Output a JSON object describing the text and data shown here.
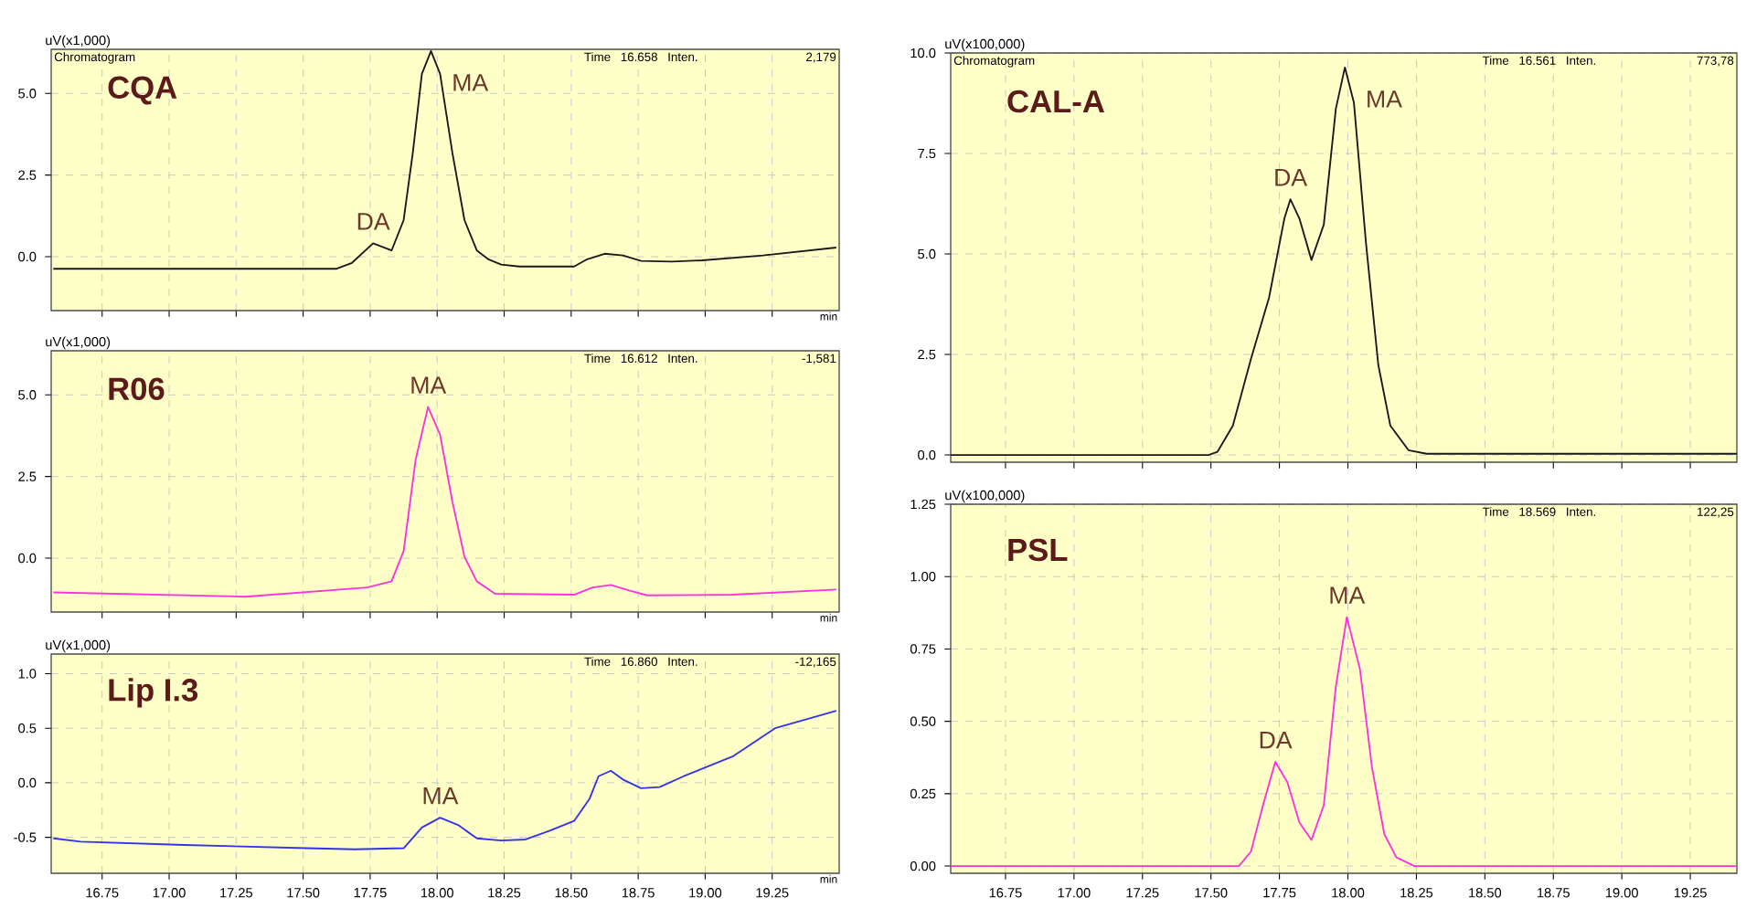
{
  "chart_data": [
    {
      "type": "line",
      "title": "CQA",
      "subtitle": "Chromatogram",
      "ylabel": "uV(x1,000)",
      "xlabel": "min",
      "grid": true,
      "tick_labels": "y",
      "xlim": [
        16.56,
        19.5
      ],
      "ylim": [
        -1.65,
        6.35
      ],
      "xticks": [
        16.75,
        17,
        17.25,
        17.5,
        17.75,
        18,
        18.25,
        18.5,
        18.75,
        19,
        19.25
      ],
      "yticks": [
        {
          "value": 0,
          "label": "0.0"
        },
        {
          "value": 2.5,
          "label": "2.5"
        },
        {
          "value": 5,
          "label": "5.0"
        }
      ],
      "x": [
        16.568,
        17.625,
        17.682,
        17.761,
        17.83,
        17.875,
        17.909,
        17.943,
        17.977,
        18.011,
        18.057,
        18.102,
        18.148,
        18.193,
        18.239,
        18.307,
        18.511,
        18.557,
        18.625,
        18.693,
        18.761,
        18.875,
        18.989,
        19.216,
        19.489
      ],
      "series": [
        {
          "color": "#1a1a1a",
          "values": [
            -0.37,
            -0.37,
            -0.19,
            0.41,
            0.19,
            1.12,
            3.17,
            5.6,
            6.3,
            5.6,
            3.17,
            1.12,
            0.19,
            -0.09,
            -0.24,
            -0.3,
            -0.3,
            -0.09,
            0.09,
            0.04,
            -0.13,
            -0.15,
            -0.11,
            0.04,
            0.28
          ]
        }
      ],
      "annotations": [
        {
          "text": "DA",
          "x": 17.761,
          "y": 0.41
        },
        {
          "text": "MA",
          "x": 17.977,
          "y": 6.3
        },
        "Time",
        "16.658",
        "Inten.",
        "2,179"
      ]
    },
    {
      "type": "line",
      "title": "R06",
      "ylabel": "uV(x1,000)",
      "xlabel": "min",
      "grid": true,
      "tick_labels": "y",
      "xlim": [
        16.56,
        19.5
      ],
      "ylim": [
        -1.65,
        6.35
      ],
      "xticks": [
        16.75,
        17,
        17.25,
        17.5,
        17.75,
        18,
        18.25,
        18.5,
        18.75,
        19,
        19.25
      ],
      "yticks": [
        {
          "value": 0,
          "label": "0.0"
        },
        {
          "value": 2.5,
          "label": "2.5"
        },
        {
          "value": 5,
          "label": "5.0"
        }
      ],
      "x": [
        16.568,
        17.284,
        17.739,
        17.83,
        17.875,
        17.92,
        17.966,
        18.011,
        18.057,
        18.102,
        18.148,
        18.216,
        18.511,
        18.58,
        18.648,
        18.716,
        18.784,
        19.102,
        19.489
      ],
      "series": [
        {
          "color": "#ff33dd",
          "values": [
            -1.05,
            -1.18,
            -0.9,
            -0.71,
            0.22,
            3.03,
            4.63,
            3.78,
            1.72,
            0.04,
            -0.71,
            -1.09,
            -1.12,
            -0.9,
            -0.82,
            -0.99,
            -1.14,
            -1.12,
            -0.96
          ]
        }
      ],
      "annotations": [
        {
          "text": "MA",
          "x": 17.966,
          "y": 4.63
        },
        "Time",
        "16.612",
        "Inten.",
        "-1,581"
      ]
    },
    {
      "type": "line",
      "title": "Lip I.3",
      "ylabel": "uV(x1,000)",
      "xlabel": "min",
      "grid": true,
      "xlim": [
        16.56,
        19.5
      ],
      "ylim": [
        -0.83,
        1.18
      ],
      "xticks": [
        {
          "value": 16.75,
          "label": "16.75"
        },
        {
          "value": 17,
          "label": "17.00"
        },
        {
          "value": 17.25,
          "label": "17.25"
        },
        {
          "value": 17.5,
          "label": "17.50"
        },
        {
          "value": 17.75,
          "label": "17.75"
        },
        {
          "value": 18,
          "label": "18.00"
        },
        {
          "value": 18.25,
          "label": "18.25"
        },
        {
          "value": 18.5,
          "label": "18.50"
        },
        {
          "value": 18.75,
          "label": "18.75"
        },
        {
          "value": 19,
          "label": "19.00"
        },
        {
          "value": 19.25,
          "label": "19.25"
        }
      ],
      "yticks": [
        {
          "value": -0.5,
          "label": "-0.5"
        },
        {
          "value": 0,
          "label": "0.0"
        },
        {
          "value": 0.5,
          "label": "0.5"
        },
        {
          "value": 1,
          "label": "1.0"
        }
      ],
      "x": [
        16.568,
        16.67,
        17.057,
        17.511,
        17.693,
        17.875,
        17.943,
        18.011,
        18.08,
        18.148,
        18.239,
        18.33,
        18.42,
        18.511,
        18.568,
        18.602,
        18.648,
        18.693,
        18.761,
        18.83,
        18.92,
        19.102,
        19.261,
        19.489
      ],
      "series": [
        {
          "color": "#3333ee",
          "values": [
            -0.51,
            -0.54,
            -0.57,
            -0.6,
            -0.61,
            -0.6,
            -0.41,
            -0.32,
            -0.39,
            -0.51,
            -0.53,
            -0.52,
            -0.44,
            -0.35,
            -0.15,
            0.06,
            0.11,
            0.03,
            -0.05,
            -0.04,
            0.06,
            0.24,
            0.5,
            0.66
          ]
        }
      ],
      "annotations": [
        {
          "text": "MA",
          "x": 18.011,
          "y": -0.32
        },
        "Time",
        "16.860",
        "Inten.",
        "-12,165"
      ]
    },
    {
      "type": "line",
      "title": "CAL-A",
      "subtitle": "Chromatogram",
      "ylabel": "uV(x100,000)",
      "grid": true,
      "tick_labels": "y",
      "xlim": [
        16.55,
        19.42
      ],
      "ylim": [
        -0.18,
        10.0
      ],
      "xticks": [
        16.75,
        17,
        17.25,
        17.5,
        17.75,
        18,
        18.25,
        18.5,
        18.75,
        19,
        19.25
      ],
      "yticks": [
        {
          "value": 0,
          "label": "0.0"
        },
        {
          "value": 2.5,
          "label": "2.5"
        },
        {
          "value": 5,
          "label": "5.0"
        },
        {
          "value": 7.5,
          "label": "7.5"
        },
        {
          "value": 10,
          "label": "10.0"
        }
      ],
      "x": [
        16.55,
        17.491,
        17.524,
        17.58,
        17.646,
        17.712,
        17.768,
        17.79,
        17.823,
        17.867,
        17.912,
        17.956,
        17.989,
        18.022,
        18.066,
        18.111,
        18.155,
        18.221,
        18.288,
        19.42
      ],
      "series": [
        {
          "color": "#1a1a1a",
          "values": [
            0,
            0,
            0.08,
            0.73,
            2.39,
            3.91,
            5.88,
            6.36,
            5.88,
            4.85,
            5.73,
            8.61,
            9.64,
            8.76,
            5.27,
            2.24,
            0.73,
            0.12,
            0.03,
            0.03
          ]
        }
      ],
      "annotations": [
        {
          "text": "DA",
          "x": 17.79,
          "y": 6.36
        },
        {
          "text": "MA",
          "x": 17.989,
          "y": 9.64
        },
        "Time",
        "16.561",
        "Inten.",
        "773,78"
      ]
    },
    {
      "type": "line",
      "title": "PSL",
      "ylabel": "uV(x100,000)",
      "grid": true,
      "xlim": [
        16.55,
        19.42
      ],
      "ylim": [
        -0.025,
        1.25
      ],
      "xticks": [
        {
          "value": 16.75,
          "label": "16.75"
        },
        {
          "value": 17,
          "label": "17.00"
        },
        {
          "value": 17.25,
          "label": "17.25"
        },
        {
          "value": 17.5,
          "label": "17.50"
        },
        {
          "value": 17.75,
          "label": "17.75"
        },
        {
          "value": 18,
          "label": "18.00"
        },
        {
          "value": 18.25,
          "label": "18.25"
        },
        {
          "value": 18.5,
          "label": "18.50"
        },
        {
          "value": 18.75,
          "label": "18.75"
        },
        {
          "value": 19,
          "label": "19.00"
        },
        {
          "value": 19.25,
          "label": "19.25"
        }
      ],
      "yticks": [
        {
          "value": 0,
          "label": "0.00"
        },
        {
          "value": 0.25,
          "label": "0.25"
        },
        {
          "value": 0.5,
          "label": "0.50"
        },
        {
          "value": 0.75,
          "label": "0.75"
        },
        {
          "value": 1,
          "label": "1.00"
        },
        {
          "value": 1.25,
          "label": "1.25"
        }
      ],
      "x": [
        16.55,
        17.602,
        17.646,
        17.69,
        17.735,
        17.779,
        17.823,
        17.867,
        17.912,
        17.956,
        17.996,
        18.044,
        18.088,
        18.133,
        18.177,
        18.243,
        19.42
      ],
      "series": [
        {
          "color": "#ff33dd",
          "values": [
            0,
            0,
            0.05,
            0.21,
            0.36,
            0.29,
            0.15,
            0.09,
            0.21,
            0.62,
            0.86,
            0.68,
            0.34,
            0.11,
            0.03,
            0,
            0
          ]
        }
      ],
      "annotations": [
        {
          "text": "DA",
          "x": 17.735,
          "y": 0.36
        },
        {
          "text": "MA",
          "x": 17.996,
          "y": 0.86
        },
        "Time",
        "18.569",
        "Inten.",
        "122,25"
      ]
    }
  ]
}
